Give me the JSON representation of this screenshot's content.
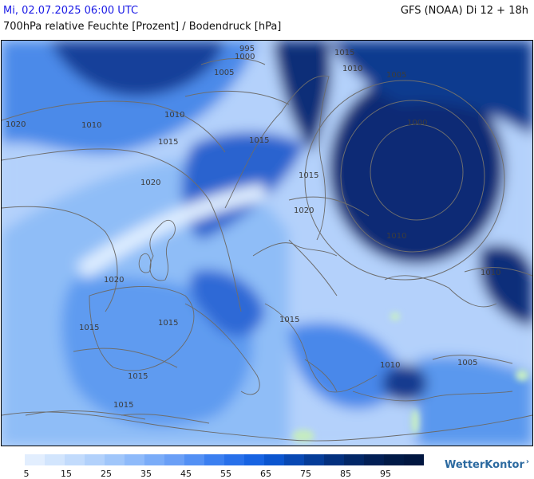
{
  "header": {
    "datetime": "Mi, 02.07.2025 06:00 UTC",
    "model": "GFS (NOAA) Di 12 + 18h",
    "parameter": "700hPa relative Feuchte [Prozent] / Bodendruck [hPa]"
  },
  "isobar_labels": [
    "995",
    "1000",
    "1005",
    "1010",
    "1015",
    "1020"
  ],
  "legend": {
    "ticks": [
      "5",
      "15",
      "25",
      "35",
      "45",
      "55",
      "65",
      "75",
      "85",
      "95"
    ],
    "colors": [
      "#e2eefe",
      "#d2e5fd",
      "#c2dbfc",
      "#b2d1fb",
      "#a0c6fa",
      "#8ebafa",
      "#7aacf8",
      "#6a9ff6",
      "#5390f4",
      "#3b7ff0",
      "#2870ea",
      "#1763e2",
      "#0b55cf",
      "#0848b3",
      "#053c98",
      "#03307e",
      "#022767",
      "#021f55",
      "#011a47",
      "#011640"
    ]
  },
  "brand": {
    "name": "WetterKontor"
  }
}
